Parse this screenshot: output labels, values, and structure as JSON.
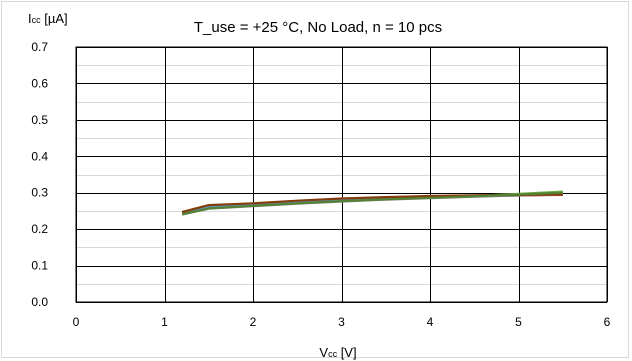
{
  "chart_data": {
    "type": "line",
    "title": "T_use = +25 °C, No Load, n = 10 pcs",
    "ylabel_main": "I",
    "ylabel_sub": "cc",
    "ylabel_unit": " [µA]",
    "xlabel_main": "V",
    "xlabel_sub": "cc",
    "xlabel_unit": " [V]",
    "xlim": [
      0,
      6
    ],
    "ylim": [
      0.0,
      0.7
    ],
    "x_ticks": [
      0,
      1,
      2,
      3,
      4,
      5,
      6
    ],
    "y_ticks": [
      0.0,
      0.1,
      0.2,
      0.3,
      0.4,
      0.5,
      0.6,
      0.7
    ],
    "x_tick_labels": [
      "0",
      "1",
      "2",
      "3",
      "4",
      "5",
      "6"
    ],
    "y_tick_labels": [
      "0.0",
      "0.1",
      "0.2",
      "0.3",
      "0.4",
      "0.5",
      "0.6",
      "0.7"
    ],
    "grid": true,
    "series": [
      {
        "color": "#7f7f7f",
        "x": [
          1.2,
          1.5,
          2.0,
          2.5,
          3.0,
          3.5,
          4.0,
          4.5,
          5.0,
          5.5
        ],
        "y": [
          0.24,
          0.256,
          0.263,
          0.27,
          0.276,
          0.281,
          0.285,
          0.289,
          0.292,
          0.295
        ]
      },
      {
        "color": "#70ad47",
        "x": [
          1.2,
          1.5,
          2.0,
          2.5,
          3.0,
          3.5,
          4.0,
          4.5,
          5.0,
          5.5
        ],
        "y": [
          0.241,
          0.258,
          0.265,
          0.272,
          0.278,
          0.283,
          0.287,
          0.291,
          0.297,
          0.303
        ]
      },
      {
        "color": "#4472c4",
        "x": [
          1.2,
          1.5,
          2.0,
          2.5,
          3.0,
          3.5,
          4.0,
          4.5,
          5.0,
          5.5
        ],
        "y": [
          0.242,
          0.259,
          0.266,
          0.273,
          0.279,
          0.284,
          0.288,
          0.291,
          0.294,
          0.297
        ]
      },
      {
        "color": "#ed7d31",
        "x": [
          1.2,
          1.5,
          2.0,
          2.5,
          3.0,
          3.5,
          4.0,
          4.5,
          5.0,
          5.5
        ],
        "y": [
          0.244,
          0.262,
          0.268,
          0.275,
          0.281,
          0.286,
          0.289,
          0.292,
          0.294,
          0.296
        ]
      },
      {
        "color": "#c00000",
        "x": [
          1.2,
          1.5,
          2.0,
          2.5,
          3.0,
          3.5,
          4.0,
          4.5,
          5.0,
          5.5
        ],
        "y": [
          0.246,
          0.264,
          0.27,
          0.277,
          0.283,
          0.287,
          0.29,
          0.292,
          0.293,
          0.294
        ]
      },
      {
        "color": "#a5a5a5",
        "x": [
          1.2,
          1.5,
          2.0,
          2.5,
          3.0,
          3.5,
          4.0,
          4.5,
          5.0,
          5.5
        ],
        "y": [
          0.243,
          0.261,
          0.267,
          0.274,
          0.28,
          0.285,
          0.288,
          0.291,
          0.293,
          0.295
        ]
      },
      {
        "color": "#997300",
        "x": [
          1.2,
          1.5,
          2.0,
          2.5,
          3.0,
          3.5,
          4.0,
          4.5,
          5.0,
          5.5
        ],
        "y": [
          0.245,
          0.263,
          0.269,
          0.276,
          0.282,
          0.286,
          0.289,
          0.292,
          0.294,
          0.296
        ]
      },
      {
        "color": "#5b9bd5",
        "x": [
          1.2,
          1.5,
          2.0,
          2.5,
          3.0,
          3.5,
          4.0,
          4.5,
          5.0,
          5.5
        ],
        "y": [
          0.242,
          0.26,
          0.267,
          0.273,
          0.279,
          0.284,
          0.288,
          0.291,
          0.294,
          0.297
        ]
      },
      {
        "color": "#833c0b",
        "x": [
          1.2,
          1.5,
          2.0,
          2.5,
          3.0,
          3.5,
          4.0,
          4.5,
          5.0,
          5.5
        ],
        "y": [
          0.247,
          0.266,
          0.271,
          0.278,
          0.284,
          0.288,
          0.291,
          0.293,
          0.294,
          0.295
        ]
      },
      {
        "color": "#548235",
        "x": [
          1.2,
          1.5,
          2.0,
          2.5,
          3.0,
          3.5,
          4.0,
          4.5,
          5.0,
          5.5
        ],
        "y": [
          0.241,
          0.257,
          0.264,
          0.271,
          0.277,
          0.282,
          0.286,
          0.29,
          0.295,
          0.3
        ]
      }
    ]
  }
}
